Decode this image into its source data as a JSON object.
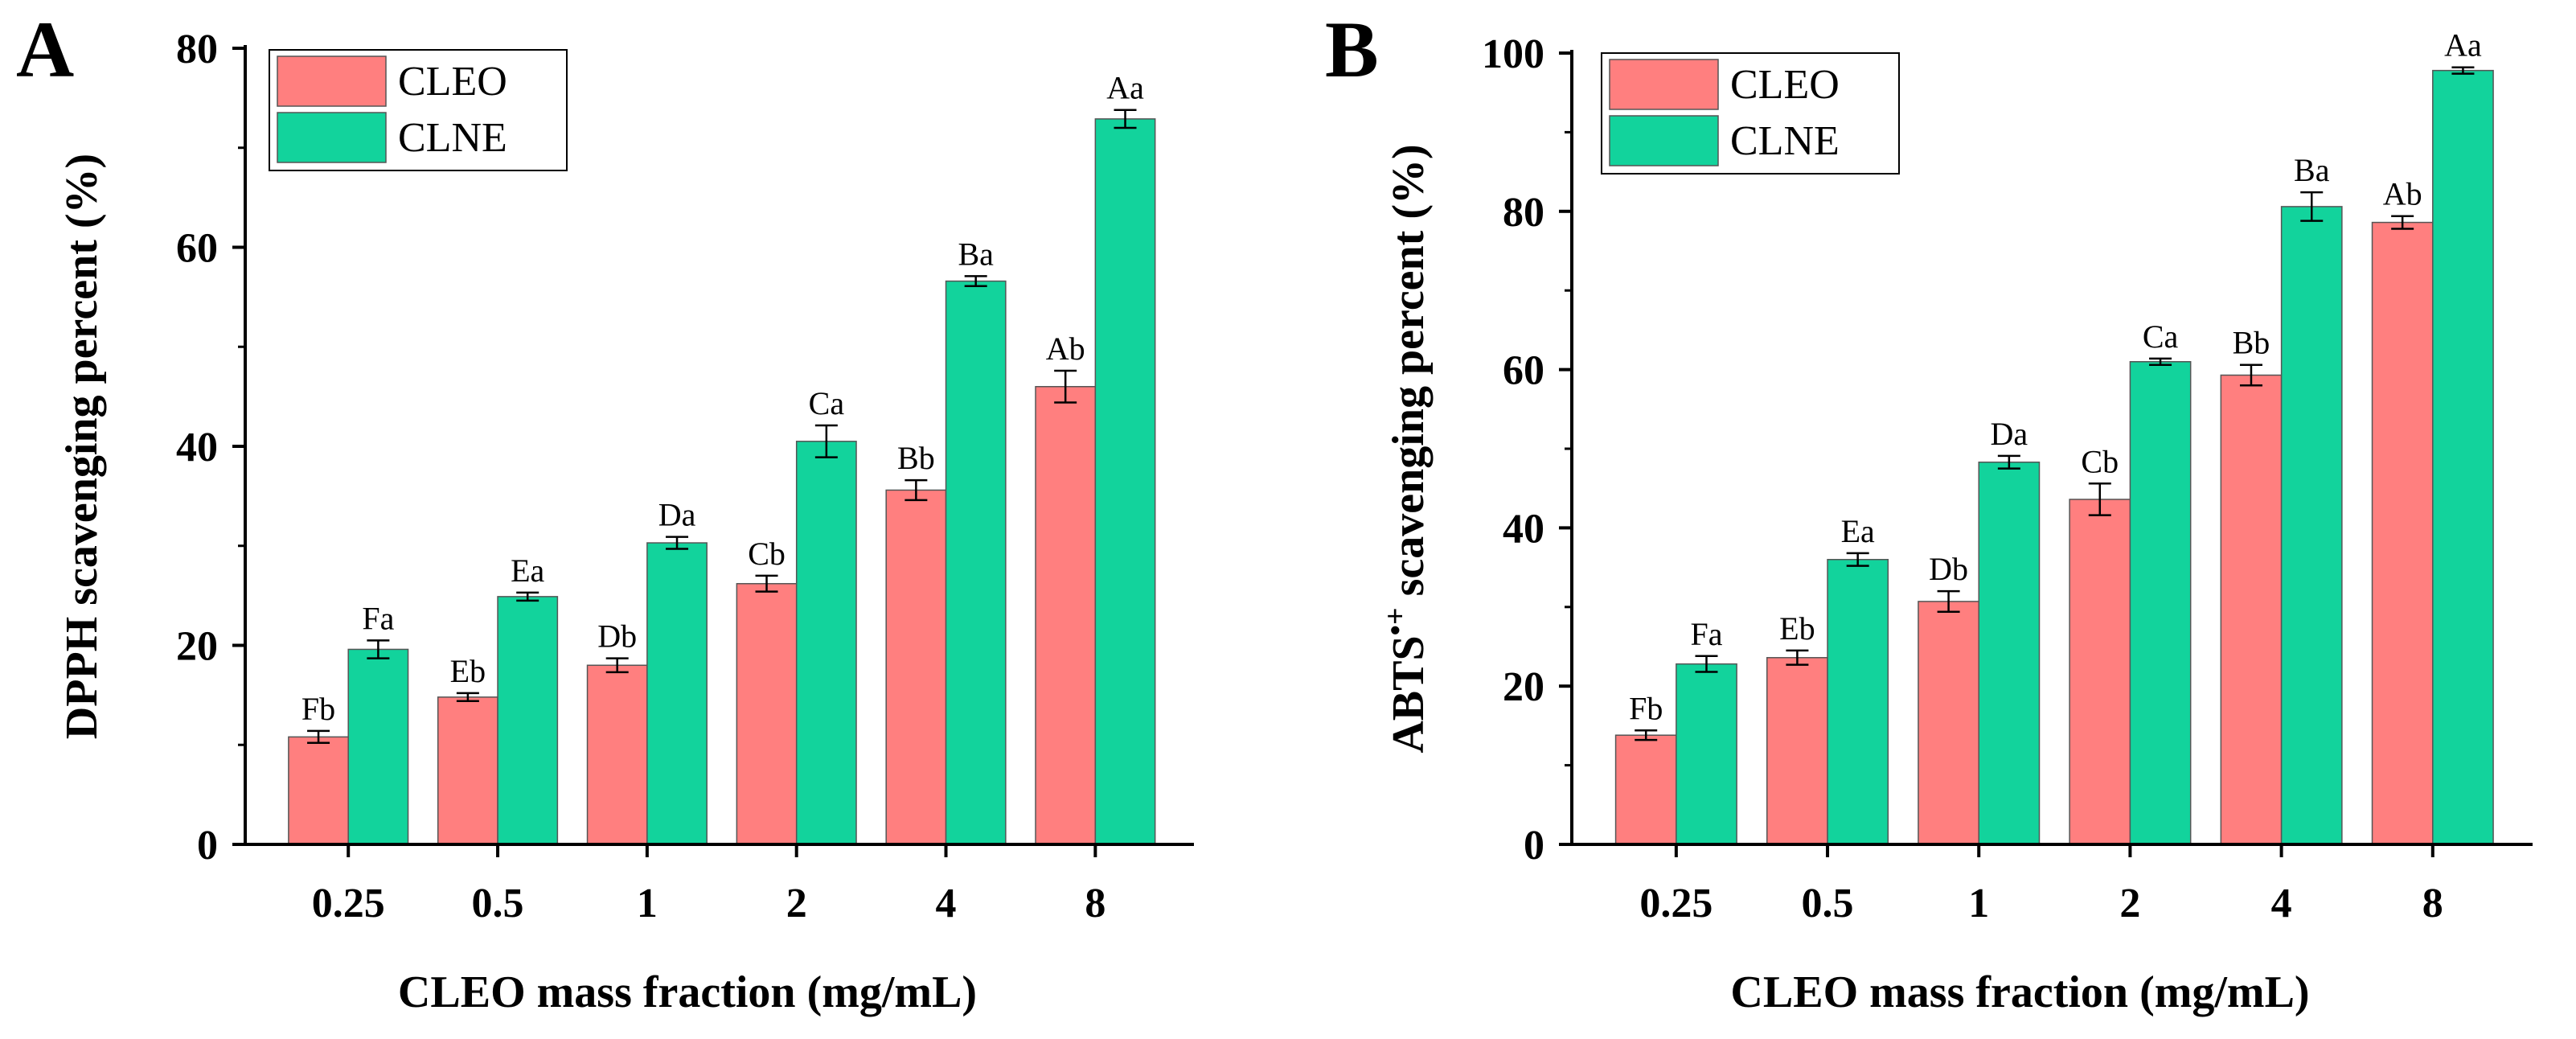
{
  "colors": {
    "series_a": "#FF7F7F",
    "series_b": "#12D39C",
    "axis": "#000000"
  },
  "chart_data": [
    {
      "panel": "A",
      "type": "bar",
      "categories": [
        "0.25",
        "0.5",
        "1",
        "2",
        "4",
        "8"
      ],
      "xlabel": "CLEO mass fraction (mg/mL)",
      "ylabel": "DPPH scavenging percent (%)",
      "ylabel_superscript": "",
      "ylim": [
        0,
        80
      ],
      "yticks": [
        0,
        20,
        40,
        60,
        80
      ],
      "legend": {
        "placement": "top-left",
        "entries": [
          "CLEO",
          "CLNE"
        ]
      },
      "series": [
        {
          "name": "CLEO",
          "values": [
            10.8,
            14.8,
            18.0,
            26.2,
            35.6,
            46.0
          ],
          "errors": [
            0.6,
            0.4,
            0.7,
            0.8,
            1.0,
            1.6
          ],
          "labels": [
            "Fb",
            "Eb",
            "Db",
            "Cb",
            "Bb",
            "Ab"
          ]
        },
        {
          "name": "CLNE",
          "values": [
            19.6,
            24.9,
            30.3,
            40.5,
            56.6,
            72.9
          ],
          "errors": [
            0.9,
            0.4,
            0.6,
            1.6,
            0.5,
            0.9
          ],
          "labels": [
            "Fa",
            "Ea",
            "Da",
            "Ca",
            "Ba",
            "Aa"
          ]
        }
      ]
    },
    {
      "panel": "B",
      "type": "bar",
      "categories": [
        "0.25",
        "0.5",
        "1",
        "2",
        "4",
        "8"
      ],
      "xlabel": "CLEO mass fraction (mg/mL)",
      "ylabel": "ABTS",
      "ylabel_superscript": "•+",
      "ylabel_rest": " scavenging percent (%)",
      "ylim": [
        0,
        100
      ],
      "yticks": [
        0,
        20,
        40,
        60,
        80,
        100
      ],
      "legend": {
        "placement": "top-left",
        "entries": [
          "CLEO",
          "CLNE"
        ]
      },
      "series": [
        {
          "name": "CLEO",
          "values": [
            13.8,
            23.6,
            30.7,
            43.6,
            59.3,
            78.6
          ],
          "errors": [
            0.6,
            0.9,
            1.3,
            2.0,
            1.3,
            0.8
          ],
          "labels": [
            "Fb",
            "Eb",
            "Db",
            "Cb",
            "Bb",
            "Ab"
          ]
        },
        {
          "name": "CLNE",
          "values": [
            22.8,
            36.0,
            48.3,
            61.0,
            80.6,
            97.8
          ],
          "errors": [
            1.0,
            0.8,
            0.8,
            0.4,
            1.8,
            0.4
          ],
          "labels": [
            "Fa",
            "Ea",
            "Da",
            "Ca",
            "Ba",
            "Aa"
          ]
        }
      ]
    }
  ]
}
